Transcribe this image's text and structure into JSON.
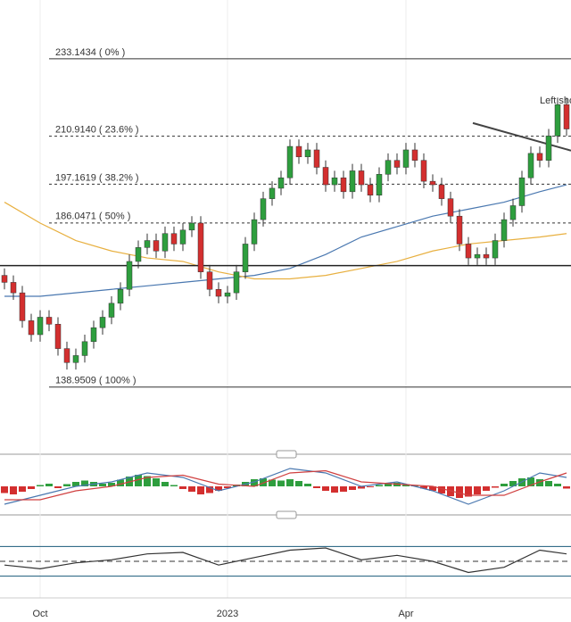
{
  "chart_data": {
    "type": "candlestick",
    "categories": [
      null,
      null,
      null,
      null,
      "Oct",
      null,
      null,
      null,
      null,
      null,
      null,
      null,
      null,
      null,
      null,
      null,
      null,
      null,
      null,
      null,
      null,
      null,
      null,
      null,
      null,
      "2023",
      null,
      null,
      null,
      null,
      null,
      null,
      null,
      null,
      null,
      null,
      null,
      null,
      null,
      null,
      null,
      null,
      null,
      null,
      null,
      "Apr",
      null,
      null,
      null,
      null,
      null,
      null,
      null,
      null,
      null,
      null,
      null,
      null,
      null,
      null,
      null,
      null,
      null,
      null
    ],
    "open": [
      171,
      169,
      166,
      158,
      154,
      159,
      157,
      150,
      146,
      148,
      152,
      156,
      159,
      163,
      167,
      175,
      179,
      181,
      178,
      183,
      180,
      184,
      186,
      172,
      167,
      165,
      166,
      172,
      180,
      187,
      193,
      196,
      199,
      208,
      205,
      207,
      202,
      197,
      199,
      195,
      201,
      197,
      194,
      200,
      204,
      202,
      207,
      204,
      198,
      197,
      193,
      188,
      180,
      176,
      177,
      176,
      181,
      187,
      191,
      199,
      206,
      204,
      211,
      220
    ],
    "high": [
      173,
      171,
      168,
      160,
      161,
      161,
      159,
      152,
      150,
      154,
      158,
      161,
      165,
      169,
      177,
      181,
      183,
      183,
      185,
      185,
      186,
      188,
      188,
      174,
      169,
      168,
      174,
      182,
      189,
      195,
      198,
      201,
      210,
      210,
      209,
      209,
      204,
      201,
      201,
      203,
      203,
      199,
      202,
      206,
      206,
      209,
      209,
      206,
      200,
      199,
      195,
      190,
      182,
      179,
      179,
      183,
      189,
      193,
      201,
      208,
      208,
      213,
      222,
      222
    ],
    "low": [
      167,
      164,
      156,
      152,
      152,
      155,
      148,
      144,
      144,
      146,
      150,
      154,
      157,
      161,
      165,
      173,
      177,
      176,
      176,
      178,
      178,
      182,
      170,
      165,
      163,
      163,
      164,
      170,
      178,
      185,
      191,
      194,
      197,
      203,
      203,
      200,
      195,
      195,
      193,
      193,
      195,
      192,
      192,
      198,
      200,
      200,
      202,
      196,
      195,
      191,
      186,
      178,
      174,
      174,
      174,
      174,
      179,
      185,
      189,
      197,
      202,
      202,
      209,
      211
    ],
    "close": [
      169,
      166,
      158,
      154,
      159,
      157,
      150,
      146,
      148,
      152,
      156,
      159,
      163,
      167,
      175,
      179,
      181,
      178,
      183,
      180,
      184,
      186,
      172,
      167,
      165,
      166,
      172,
      180,
      187,
      193,
      196,
      199,
      208,
      205,
      207,
      202,
      197,
      199,
      195,
      201,
      197,
      194,
      200,
      204,
      202,
      207,
      204,
      198,
      197,
      193,
      188,
      180,
      176,
      177,
      176,
      181,
      187,
      191,
      199,
      206,
      204,
      211,
      220,
      213
    ],
    "up_color": "#2e9e3e",
    "down_color": "#d32f2f",
    "ylim": [
      122,
      250
    ],
    "fib_levels": [
      {
        "value": 233.1434,
        "label": "233.1434 ( 0% )"
      },
      {
        "value": 210.914,
        "label": "210.9140 ( 23.6% )"
      },
      {
        "value": 197.1619,
        "label": "197.1619 ( 38.2% )"
      },
      {
        "value": 186.0471,
        "label": "186.0471 ( 50% )"
      },
      {
        "value": 138.9509,
        "label": "138.9509 ( 100% )"
      }
    ],
    "support_level": 173.8,
    "trendline": {
      "x": [
        52.5,
        63.5
      ],
      "values": [
        214.7,
        206.8
      ]
    },
    "annotation": {
      "text": "Left shoulder",
      "x": 60,
      "value": 221
    },
    "ma_series": [
      {
        "color": "#4a78b0",
        "x": [
          0,
          4,
          8,
          12,
          16,
          20,
          24,
          28,
          32,
          36,
          40,
          44,
          48,
          52,
          56,
          60,
          63
        ],
        "values": [
          165,
          165,
          166,
          167,
          168,
          169,
          170,
          171,
          173,
          177,
          182,
          185,
          188,
          190,
          192,
          195,
          197
        ]
      },
      {
        "color": "#e8b040",
        "x": [
          0,
          4,
          8,
          12,
          16,
          20,
          24,
          28,
          32,
          36,
          40,
          44,
          48,
          52,
          56,
          60,
          63
        ],
        "values": [
          192,
          186,
          181,
          178,
          176,
          175,
          172,
          170,
          170,
          171,
          173,
          175,
          178,
          180,
          181,
          182,
          183
        ]
      }
    ],
    "macd": {
      "ylim": [
        -6,
        6
      ],
      "histogram": [
        -1.5,
        -1.8,
        -1.2,
        -0.6,
        0.3,
        0.6,
        -0.4,
        0.5,
        1.0,
        1.3,
        1.0,
        0.6,
        0.8,
        1.5,
        2.2,
        2.6,
        2.3,
        1.8,
        1.0,
        0.3,
        -0.6,
        -1.2,
        -1.8,
        -1.5,
        -1.0,
        -0.4,
        0.4,
        1.0,
        1.6,
        1.8,
        1.5,
        1.3,
        1.6,
        1.2,
        0.6,
        -0.4,
        -1.0,
        -1.4,
        -1.2,
        -0.8,
        -0.5,
        -0.2,
        0.3,
        0.6,
        0.8,
        0.5,
        0.2,
        -0.5,
        -1.0,
        -1.6,
        -2.2,
        -2.6,
        -2.3,
        -1.8,
        -1.0,
        -0.3,
        0.6,
        1.2,
        1.8,
        2.0,
        1.6,
        1.2,
        0.6,
        -0.5
      ],
      "series": [
        {
          "color": "#4a78b0",
          "x": [
            0,
            4,
            8,
            12,
            16,
            20,
            24,
            28,
            32,
            36,
            40,
            44,
            48,
            52,
            56,
            60,
            63
          ],
          "values": [
            -4,
            -2,
            0,
            1,
            3,
            2,
            -1,
            1,
            4,
            3,
            0,
            1,
            -1,
            -4,
            -1,
            3,
            2
          ]
        },
        {
          "color": "#d04040",
          "x": [
            0,
            4,
            8,
            12,
            16,
            20,
            24,
            28,
            32,
            36,
            40,
            44,
            48,
            52,
            56,
            60,
            63
          ],
          "values": [
            -3,
            -3,
            -1,
            0,
            2,
            2.5,
            0.5,
            0,
            3,
            3.5,
            1,
            0.5,
            0,
            -2,
            -2,
            1,
            3
          ]
        }
      ]
    },
    "rsi": {
      "ylim": [
        20,
        80
      ],
      "levels": [
        70,
        50,
        30
      ],
      "color": "#333333",
      "x": [
        0,
        4,
        8,
        12,
        16,
        20,
        24,
        28,
        32,
        36,
        40,
        44,
        48,
        52,
        56,
        60,
        63
      ],
      "values": [
        45,
        40,
        48,
        52,
        60,
        62,
        45,
        55,
        65,
        68,
        52,
        58,
        50,
        35,
        42,
        65,
        60
      ]
    }
  }
}
